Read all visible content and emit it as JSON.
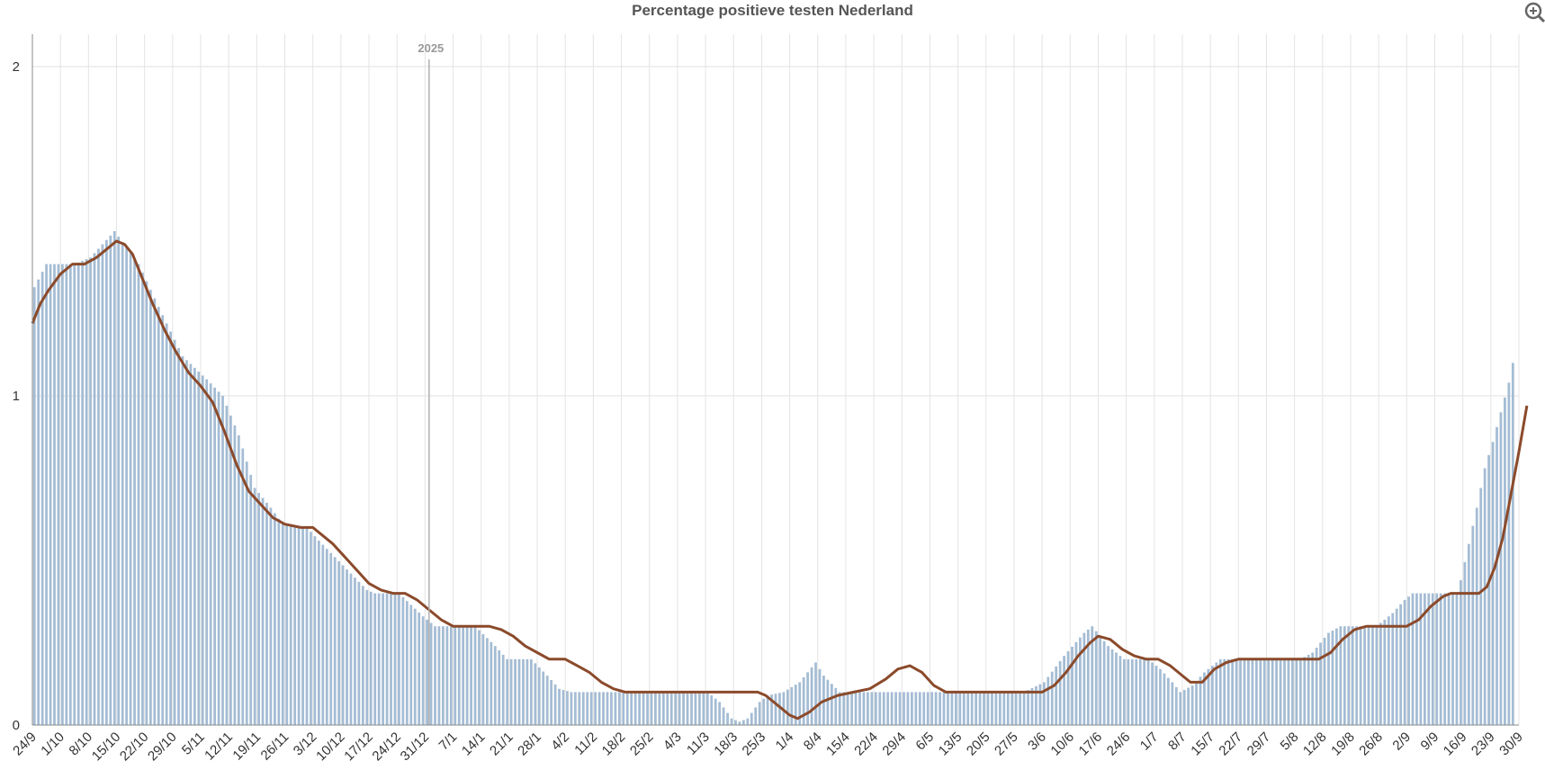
{
  "chart_data": {
    "type": "bar",
    "title": "Percentage positieve testen Nederland",
    "xlabel": "",
    "ylabel": "",
    "ylim": [
      0,
      2
    ],
    "y_ticks": [
      "0",
      "1",
      "2"
    ],
    "grid": true,
    "year_marker": {
      "label": "2025",
      "at_date": "2025-01-01"
    },
    "x_range": {
      "start": "2024-09-24",
      "end": "2025-09-30"
    },
    "x_tick_labels": [
      "24/9",
      "1/10",
      "8/10",
      "15/10",
      "22/10",
      "29/10",
      "5/11",
      "12/11",
      "19/11",
      "26/11",
      "3/12",
      "10/12",
      "17/12",
      "24/12",
      "31/12",
      "7/1",
      "14/1",
      "21/1",
      "28/1",
      "4/2",
      "11/2",
      "18/2",
      "25/2",
      "4/3",
      "11/3",
      "18/3",
      "25/3",
      "1/4",
      "8/4",
      "15/4",
      "22/4",
      "29/4",
      "6/5",
      "13/5",
      "20/5",
      "27/5",
      "3/6",
      "10/6",
      "17/6",
      "24/6",
      "1/7",
      "8/7",
      "15/7",
      "22/7",
      "29/7",
      "5/8",
      "12/8",
      "19/8",
      "26/8",
      "2/9",
      "9/9",
      "16/9",
      "23/9",
      "30/9"
    ],
    "series": [
      {
        "kind": "bar",
        "color": "#a4bcd4",
        "points": [
          [
            "2024-09-24",
            1.33
          ],
          [
            "2024-09-27",
            1.4
          ],
          [
            "2024-10-04",
            1.4
          ],
          [
            "2024-10-08",
            1.42
          ],
          [
            "2024-10-14",
            1.5
          ],
          [
            "2024-10-20",
            1.4
          ],
          [
            "2024-10-25",
            1.27
          ],
          [
            "2024-10-31",
            1.12
          ],
          [
            "2024-11-06",
            1.05
          ],
          [
            "2024-11-10",
            1.0
          ],
          [
            "2024-11-14",
            0.88
          ],
          [
            "2024-11-18",
            0.72
          ],
          [
            "2024-11-22",
            0.66
          ],
          [
            "2024-11-25",
            0.61
          ],
          [
            "2024-12-01",
            0.6
          ],
          [
            "2024-12-04",
            0.56
          ],
          [
            "2024-12-08",
            0.51
          ],
          [
            "2024-12-12",
            0.46
          ],
          [
            "2024-12-16",
            0.41
          ],
          [
            "2024-12-18",
            0.4
          ],
          [
            "2024-12-24",
            0.4
          ],
          [
            "2024-12-30",
            0.33
          ],
          [
            "2025-01-02",
            0.3
          ],
          [
            "2025-01-12",
            0.3
          ],
          [
            "2025-01-17",
            0.24
          ],
          [
            "2025-01-20",
            0.2
          ],
          [
            "2025-01-26",
            0.2
          ],
          [
            "2025-01-30",
            0.15
          ],
          [
            "2025-02-02",
            0.11
          ],
          [
            "2025-02-05",
            0.1
          ],
          [
            "2025-03-11",
            0.1
          ],
          [
            "2025-03-14",
            0.07
          ],
          [
            "2025-03-17",
            0.02
          ],
          [
            "2025-03-19",
            0.01
          ],
          [
            "2025-03-21",
            0.02
          ],
          [
            "2025-03-24",
            0.07
          ],
          [
            "2025-03-26",
            0.09
          ],
          [
            "2025-03-30",
            0.1
          ],
          [
            "2025-04-03",
            0.13
          ],
          [
            "2025-04-07",
            0.19
          ],
          [
            "2025-04-09",
            0.15
          ],
          [
            "2025-04-13",
            0.1
          ],
          [
            "2025-05-29",
            0.1
          ],
          [
            "2025-06-03",
            0.13
          ],
          [
            "2025-06-08",
            0.21
          ],
          [
            "2025-06-13",
            0.28
          ],
          [
            "2025-06-15",
            0.3
          ],
          [
            "2025-06-19",
            0.24
          ],
          [
            "2025-06-23",
            0.2
          ],
          [
            "2025-06-29",
            0.2
          ],
          [
            "2025-07-02",
            0.17
          ],
          [
            "2025-07-05",
            0.13
          ],
          [
            "2025-07-07",
            0.1
          ],
          [
            "2025-07-10",
            0.12
          ],
          [
            "2025-07-13",
            0.16
          ],
          [
            "2025-07-17",
            0.2
          ],
          [
            "2025-08-06",
            0.2
          ],
          [
            "2025-08-09",
            0.22
          ],
          [
            "2025-08-13",
            0.28
          ],
          [
            "2025-08-16",
            0.3
          ],
          [
            "2025-08-25",
            0.3
          ],
          [
            "2025-08-29",
            0.34
          ],
          [
            "2025-09-01",
            0.38
          ],
          [
            "2025-09-03",
            0.4
          ],
          [
            "2025-09-14",
            0.4
          ],
          [
            "2025-09-15",
            0.44
          ],
          [
            "2025-09-17",
            0.55
          ],
          [
            "2025-09-19",
            0.66
          ],
          [
            "2025-09-21",
            0.78
          ],
          [
            "2025-09-23",
            0.86
          ],
          [
            "2025-09-25",
            0.95
          ],
          [
            "2025-09-27",
            1.04
          ],
          [
            "2025-09-28",
            1.1
          ]
        ]
      },
      {
        "kind": "line",
        "color": "#8b4a2b",
        "points": [
          [
            "2024-09-24",
            1.22
          ],
          [
            "2024-09-26",
            1.28
          ],
          [
            "2024-09-28",
            1.32
          ],
          [
            "2024-10-01",
            1.37
          ],
          [
            "2024-10-04",
            1.4
          ],
          [
            "2024-10-07",
            1.4
          ],
          [
            "2024-10-10",
            1.42
          ],
          [
            "2024-10-13",
            1.45
          ],
          [
            "2024-10-15",
            1.47
          ],
          [
            "2024-10-17",
            1.46
          ],
          [
            "2024-10-19",
            1.43
          ],
          [
            "2024-10-21",
            1.37
          ],
          [
            "2024-10-24",
            1.28
          ],
          [
            "2024-10-27",
            1.2
          ],
          [
            "2024-10-30",
            1.13
          ],
          [
            "2024-11-02",
            1.07
          ],
          [
            "2024-11-05",
            1.03
          ],
          [
            "2024-11-08",
            0.98
          ],
          [
            "2024-11-11",
            0.89
          ],
          [
            "2024-11-14",
            0.79
          ],
          [
            "2024-11-17",
            0.71
          ],
          [
            "2024-11-20",
            0.67
          ],
          [
            "2024-11-23",
            0.63
          ],
          [
            "2024-11-26",
            0.61
          ],
          [
            "2024-11-30",
            0.6
          ],
          [
            "2024-12-03",
            0.6
          ],
          [
            "2024-12-05",
            0.58
          ],
          [
            "2024-12-08",
            0.55
          ],
          [
            "2024-12-11",
            0.51
          ],
          [
            "2024-12-14",
            0.47
          ],
          [
            "2024-12-17",
            0.43
          ],
          [
            "2024-12-20",
            0.41
          ],
          [
            "2024-12-23",
            0.4
          ],
          [
            "2024-12-26",
            0.4
          ],
          [
            "2024-12-29",
            0.38
          ],
          [
            "2025-01-01",
            0.35
          ],
          [
            "2025-01-04",
            0.32
          ],
          [
            "2025-01-07",
            0.3
          ],
          [
            "2025-01-10",
            0.3
          ],
          [
            "2025-01-16",
            0.3
          ],
          [
            "2025-01-19",
            0.29
          ],
          [
            "2025-01-22",
            0.27
          ],
          [
            "2025-01-25",
            0.24
          ],
          [
            "2025-01-28",
            0.22
          ],
          [
            "2025-01-31",
            0.2
          ],
          [
            "2025-02-04",
            0.2
          ],
          [
            "2025-02-07",
            0.18
          ],
          [
            "2025-02-10",
            0.16
          ],
          [
            "2025-02-13",
            0.13
          ],
          [
            "2025-02-16",
            0.11
          ],
          [
            "2025-02-19",
            0.1
          ],
          [
            "2025-03-24",
            0.1
          ],
          [
            "2025-03-26",
            0.09
          ],
          [
            "2025-03-28",
            0.07
          ],
          [
            "2025-03-30",
            0.05
          ],
          [
            "2025-04-01",
            0.03
          ],
          [
            "2025-04-03",
            0.02
          ],
          [
            "2025-04-06",
            0.04
          ],
          [
            "2025-04-09",
            0.07
          ],
          [
            "2025-04-13",
            0.09
          ],
          [
            "2025-04-17",
            0.1
          ],
          [
            "2025-04-21",
            0.11
          ],
          [
            "2025-04-25",
            0.14
          ],
          [
            "2025-04-28",
            0.17
          ],
          [
            "2025-05-01",
            0.18
          ],
          [
            "2025-05-04",
            0.16
          ],
          [
            "2025-05-07",
            0.12
          ],
          [
            "2025-05-10",
            0.1
          ],
          [
            "2025-06-03",
            0.1
          ],
          [
            "2025-06-06",
            0.12
          ],
          [
            "2025-06-09",
            0.16
          ],
          [
            "2025-06-12",
            0.21
          ],
          [
            "2025-06-15",
            0.25
          ],
          [
            "2025-06-17",
            0.27
          ],
          [
            "2025-06-20",
            0.26
          ],
          [
            "2025-06-23",
            0.23
          ],
          [
            "2025-06-26",
            0.21
          ],
          [
            "2025-06-29",
            0.2
          ],
          [
            "2025-07-02",
            0.2
          ],
          [
            "2025-07-05",
            0.18
          ],
          [
            "2025-07-08",
            0.15
          ],
          [
            "2025-07-10",
            0.13
          ],
          [
            "2025-07-13",
            0.13
          ],
          [
            "2025-07-16",
            0.17
          ],
          [
            "2025-07-19",
            0.19
          ],
          [
            "2025-07-22",
            0.2
          ],
          [
            "2025-08-11",
            0.2
          ],
          [
            "2025-08-14",
            0.22
          ],
          [
            "2025-08-17",
            0.26
          ],
          [
            "2025-08-20",
            0.29
          ],
          [
            "2025-08-23",
            0.3
          ],
          [
            "2025-09-02",
            0.3
          ],
          [
            "2025-09-05",
            0.32
          ],
          [
            "2025-09-08",
            0.36
          ],
          [
            "2025-09-11",
            0.39
          ],
          [
            "2025-09-13",
            0.4
          ],
          [
            "2025-09-20",
            0.4
          ],
          [
            "2025-09-22",
            0.42
          ],
          [
            "2025-09-24",
            0.48
          ],
          [
            "2025-09-26",
            0.57
          ],
          [
            "2025-09-28",
            0.7
          ],
          [
            "2025-09-30",
            0.83
          ],
          [
            "2025-10-02",
            0.97
          ]
        ]
      }
    ]
  },
  "zoom_icon": "magnifier-zoom-icon"
}
